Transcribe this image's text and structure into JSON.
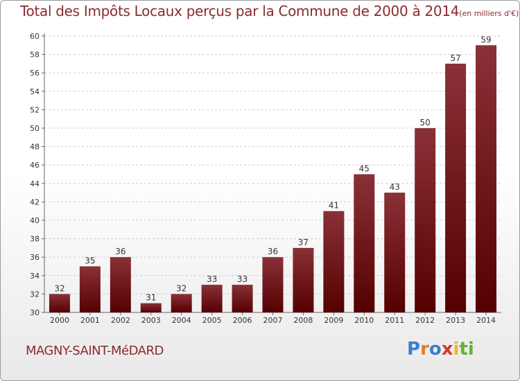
{
  "header": {
    "title": "Total des Impôts Locaux perçus par la Commune de 2000 à 2014",
    "unit": "(en milliers d'€)"
  },
  "footer": {
    "commune": "MAGNY-SAINT-MéDARD",
    "brand": "Proxiti",
    "brand_letters": [
      {
        "ch": "P",
        "color": "#3a7fd0"
      },
      {
        "ch": "r",
        "color": "#e8792a"
      },
      {
        "ch": "o",
        "color": "#3a7fd0"
      },
      {
        "ch": "x",
        "color": "#d63a2a"
      },
      {
        "ch": "i",
        "color": "#f0b62a"
      },
      {
        "ch": "t",
        "color": "#62b234"
      },
      {
        "ch": "i",
        "color": "#62b234"
      }
    ]
  },
  "colors": {
    "bar_top": "#8a3137",
    "bar_bottom": "#550000",
    "title": "#8b2a2f",
    "grid": "#cccccc",
    "axis_text": "#333333"
  },
  "chart_data": {
    "type": "bar",
    "title": "Total des Impôts Locaux perçus par la Commune de 2000 à 2014",
    "xlabel": "",
    "ylabel": "(en milliers d'€)",
    "categories": [
      "2000",
      "2001",
      "2002",
      "2003",
      "2004",
      "2005",
      "2006",
      "2007",
      "2008",
      "2009",
      "2010",
      "2011",
      "2012",
      "2013",
      "2014"
    ],
    "values": [
      32,
      35,
      36,
      31,
      32,
      33,
      33,
      36,
      37,
      41,
      45,
      43,
      50,
      57,
      59
    ],
    "ylim": [
      30,
      60
    ],
    "yticks": [
      30,
      32,
      34,
      36,
      38,
      40,
      42,
      44,
      46,
      48,
      50,
      52,
      54,
      56,
      58,
      60
    ],
    "grid": true,
    "data_labels": true
  }
}
